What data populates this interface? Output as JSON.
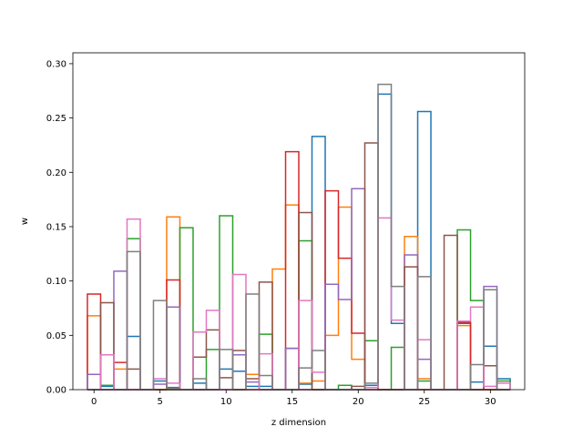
{
  "chart_data": {
    "type": "step",
    "xlabel": "z dimension",
    "ylabel": "w",
    "xlim": [
      -1.6,
      32.6
    ],
    "ylim": [
      0,
      0.31
    ],
    "xticks": [
      0,
      5,
      10,
      15,
      20,
      25,
      30
    ],
    "xtick_labels": [
      "0",
      "5",
      "10",
      "15",
      "20",
      "25",
      "30"
    ],
    "yticks": [
      0.0,
      0.05,
      0.1,
      0.15,
      0.2,
      0.25,
      0.3
    ],
    "ytick_labels": [
      "0.00",
      "0.05",
      "0.10",
      "0.15",
      "0.20",
      "0.25",
      "0.30"
    ],
    "bin_edges_start": -0.5,
    "bin_width": 1,
    "colors": [
      "#1f77b4",
      "#ff7f0e",
      "#2ca02c",
      "#d62728",
      "#9467bd",
      "#8c564b",
      "#e377c2",
      "#7f7f7f"
    ],
    "series": [
      {
        "values": [
          0,
          0.003,
          0,
          0.049,
          0,
          0.008,
          0.002,
          0,
          0.006,
          0,
          0.019,
          0.017,
          0.003,
          0.003,
          0,
          0.038,
          0.005,
          0.233,
          0,
          0,
          0,
          0.004,
          0.272,
          0.061,
          0,
          0.256,
          0,
          0,
          0.061,
          0.007,
          0.04,
          0.01
        ]
      },
      {
        "values": [
          0.068,
          0,
          0.019,
          0,
          0,
          0,
          0.159,
          0,
          0,
          0,
          0,
          0,
          0.014,
          0,
          0.111,
          0.17,
          0.006,
          0.008,
          0.05,
          0.168,
          0.028,
          0,
          0,
          0,
          0.141,
          0.01,
          0,
          0,
          0.059,
          0,
          0,
          0
        ]
      },
      {
        "values": [
          0,
          0.004,
          0,
          0.139,
          0,
          0,
          0,
          0.149,
          0,
          0.037,
          0.16,
          0,
          0,
          0.051,
          0,
          0,
          0.137,
          0,
          0,
          0.004,
          0,
          0.045,
          0,
          0.039,
          0,
          0.008,
          0,
          0,
          0.147,
          0.082,
          0,
          0.008
        ]
      },
      {
        "values": [
          0.088,
          0,
          0.025,
          0,
          0,
          0,
          0.101,
          0,
          0,
          0,
          0,
          0,
          0,
          0,
          0,
          0.219,
          0,
          0,
          0.183,
          0.121,
          0.052,
          0,
          0,
          0,
          0,
          0,
          0,
          0,
          0.062,
          0,
          0,
          0
        ]
      },
      {
        "values": [
          0.014,
          0,
          0.109,
          0,
          0,
          0.005,
          0.076,
          0,
          0,
          0,
          0,
          0.032,
          0.007,
          0,
          0,
          0.038,
          0,
          0,
          0.097,
          0.083,
          0.185,
          0,
          0,
          0,
          0.124,
          0.028,
          0,
          0,
          0,
          0,
          0.095,
          0
        ]
      },
      {
        "values": [
          0,
          0.08,
          0,
          0.019,
          0,
          0,
          0,
          0,
          0.03,
          0.055,
          0.011,
          0.036,
          0.01,
          0.099,
          0,
          0,
          0.163,
          0,
          0,
          0,
          0.003,
          0.227,
          0,
          0,
          0.113,
          0,
          0,
          0.142,
          0,
          0,
          0.022,
          0
        ]
      },
      {
        "values": [
          0,
          0.032,
          0,
          0.157,
          0,
          0.01,
          0.006,
          0,
          0.053,
          0.073,
          0,
          0.106,
          0,
          0.033,
          0,
          0,
          0.082,
          0.016,
          0,
          0,
          0,
          0.002,
          0.158,
          0.064,
          0,
          0.046,
          0,
          0,
          0.063,
          0.076,
          0.003,
          0.006
        ]
      },
      {
        "values": [
          0,
          0,
          0,
          0.127,
          0,
          0.082,
          0.001,
          0,
          0.01,
          0,
          0.037,
          0,
          0.088,
          0.013,
          0,
          0,
          0.02,
          0.036,
          0,
          0,
          0,
          0.006,
          0.281,
          0.095,
          0,
          0.104,
          0,
          0,
          0,
          0.023,
          0.092,
          0
        ]
      }
    ]
  }
}
